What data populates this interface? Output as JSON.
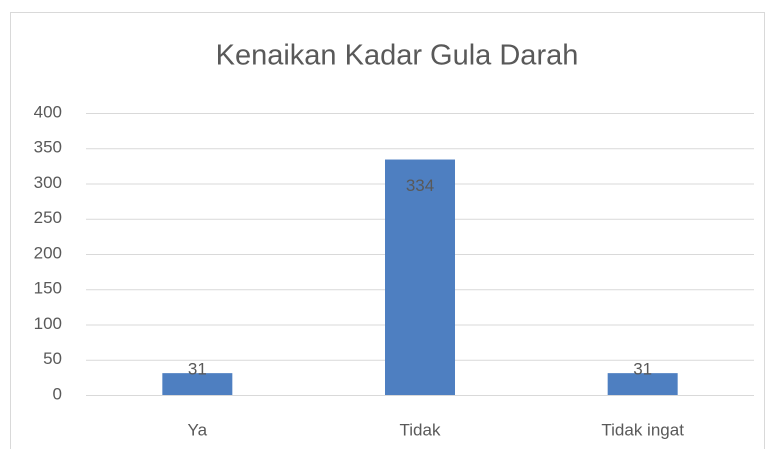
{
  "chart_data": {
    "type": "bar",
    "title": "Kenaikan Kadar Gula Darah",
    "categories": [
      "Ya",
      "Tidak",
      "Tidak ingat"
    ],
    "values": [
      31,
      334,
      31
    ],
    "color": "#4e7fc1",
    "ylim": [
      0,
      400
    ],
    "yticks": [
      0,
      50,
      100,
      150,
      200,
      250,
      300,
      350,
      400
    ],
    "grid": true
  }
}
